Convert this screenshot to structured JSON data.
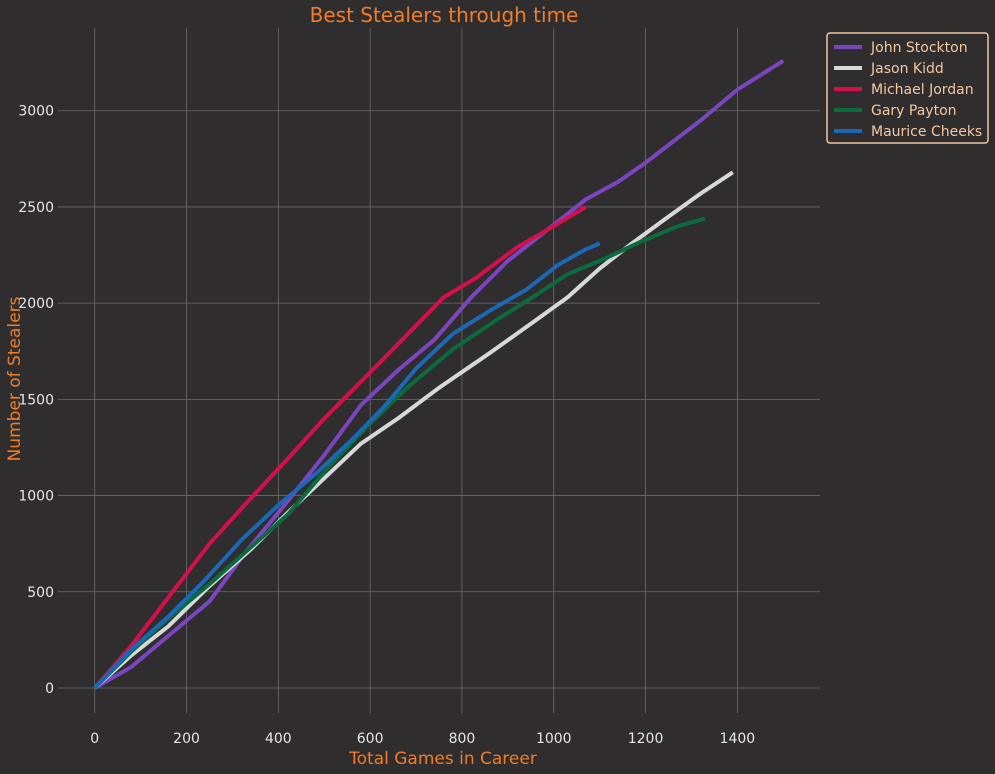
{
  "chart_data": {
    "type": "line",
    "title": "Best Stealers through time",
    "xlabel": "Total Games in Career",
    "ylabel": "Number of Stealers",
    "xlim": [
      -80,
      1580
    ],
    "ylim": [
      -130,
      3430
    ],
    "xticks": [
      0,
      200,
      400,
      600,
      800,
      1000,
      1200,
      1400
    ],
    "yticks": [
      0,
      500,
      1000,
      1500,
      2000,
      2500,
      3000
    ],
    "grid": true,
    "legend_position": "top-right",
    "series": [
      {
        "name": "John Stockton",
        "color": "#7c45c0",
        "x": [
          0,
          80,
          160,
          250,
          330,
          410,
          500,
          580,
          660,
          740,
          820,
          900,
          980,
          1070,
          1140,
          1200,
          1260,
          1320,
          1400,
          1500
        ],
        "y": [
          0,
          110,
          270,
          450,
          710,
          940,
          1210,
          1470,
          1650,
          1810,
          2030,
          2220,
          2370,
          2540,
          2630,
          2730,
          2840,
          2950,
          3110,
          3260
        ]
      },
      {
        "name": "Jason Kidd",
        "color": "#d5d9da",
        "x": [
          0,
          80,
          160,
          250,
          340,
          420,
          500,
          580,
          660,
          750,
          860,
          960,
          1030,
          1100,
          1170,
          1250,
          1320,
          1390
        ],
        "y": [
          0,
          170,
          320,
          530,
          720,
          910,
          1090,
          1270,
          1400,
          1560,
          1740,
          1910,
          2030,
          2180,
          2310,
          2450,
          2570,
          2680
        ]
      },
      {
        "name": "Michael Jordan",
        "color": "#d3104a",
        "x": [
          0,
          80,
          160,
          250,
          330,
          420,
          500,
          600,
          670,
          760,
          830,
          920,
          1000,
          1070
        ],
        "y": [
          0,
          220,
          470,
          750,
          960,
          1190,
          1400,
          1640,
          1810,
          2030,
          2130,
          2290,
          2400,
          2500
        ]
      },
      {
        "name": "Gary Payton",
        "color": "#0b6b3e",
        "x": [
          0,
          80,
          160,
          250,
          330,
          420,
          510,
          590,
          680,
          780,
          880,
          960,
          1030,
          1110,
          1190,
          1270,
          1330
        ],
        "y": [
          0,
          190,
          360,
          540,
          710,
          900,
          1150,
          1350,
          1560,
          1760,
          1920,
          2040,
          2150,
          2230,
          2320,
          2400,
          2440
        ]
      },
      {
        "name": "Maurice Cheeks",
        "color": "#1b68b7",
        "x": [
          0,
          80,
          160,
          240,
          320,
          400,
          480,
          560,
          630,
          700,
          780,
          860,
          940,
          1010,
          1070,
          1100
        ],
        "y": [
          0,
          200,
          370,
          560,
          770,
          950,
          1110,
          1290,
          1460,
          1660,
          1840,
          1960,
          2070,
          2200,
          2280,
          2310
        ]
      }
    ]
  }
}
